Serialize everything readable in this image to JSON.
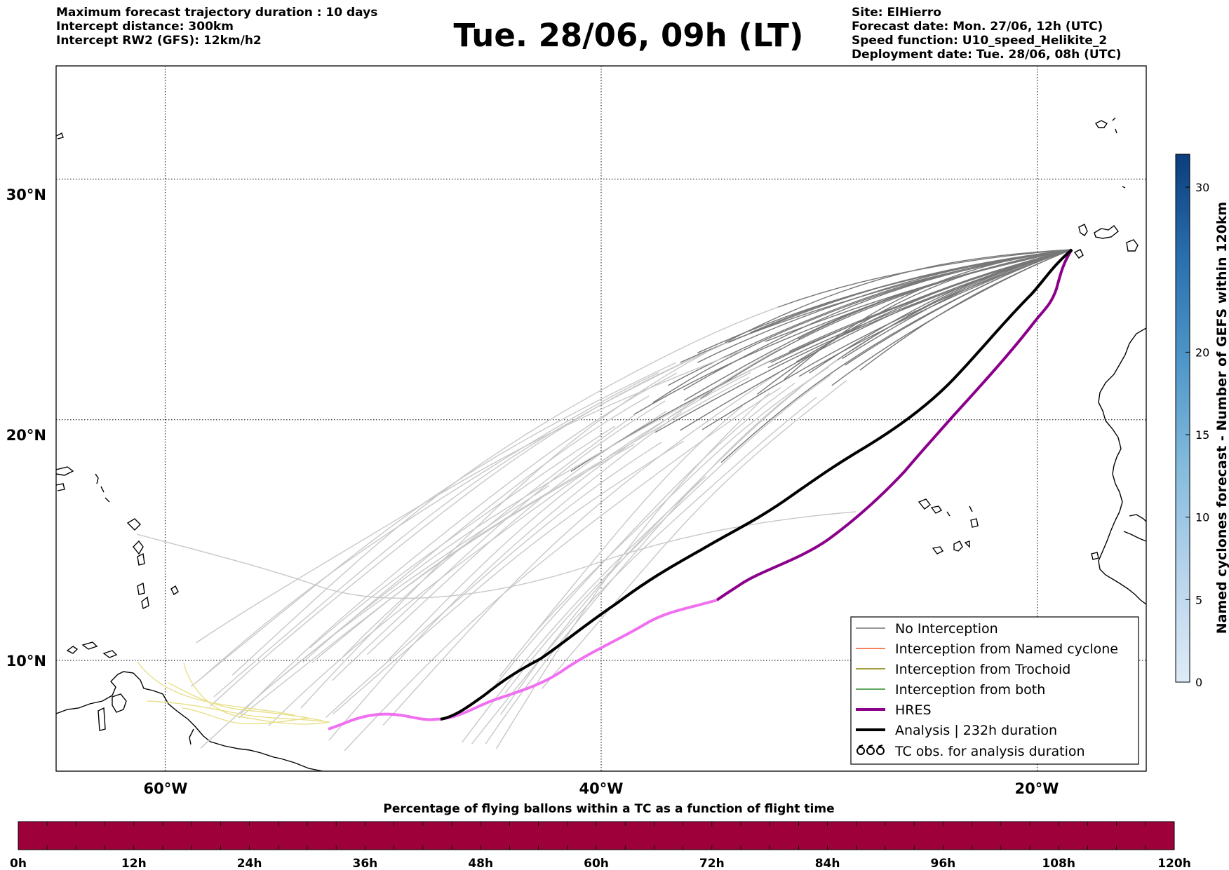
{
  "header": {
    "left_lines": [
      "Maximum forecast trajectory duration : 10 days",
      "Intercept distance: 300km",
      "Intercept RW2 (GFS):  12km/h2"
    ],
    "title": "Tue. 28/06, 09h (LT)",
    "right_lines": [
      "Site: ElHierro",
      "Forecast date: Mon. 27/06, 12h (UTC)",
      "Speed function: U10_speed_Helikite_2",
      "Deployment date: Tue. 28/06, 08h (UTC)"
    ]
  },
  "map": {
    "lon_range": [
      -65,
      -15
    ],
    "lat_range": [
      5.4,
      34.7
    ],
    "lon_ticks": [
      {
        "value": -60,
        "label": "60°W"
      },
      {
        "value": -40,
        "label": "40°W"
      },
      {
        "value": -20,
        "label": "20°W"
      }
    ],
    "lat_ticks": [
      {
        "value": 30,
        "label": "30°N"
      },
      {
        "value": 20,
        "label": "20°N"
      },
      {
        "value": 10,
        "label": "10°N"
      }
    ],
    "gridlines": "dotted",
    "colors": {
      "no_interception": "#777777",
      "faded_trajectory": "#c8c8c8",
      "trochoid_faded": "#e8e08a",
      "named_cyclone": "#f05a28",
      "trochoid": "#808000",
      "both": "#2e8b2e",
      "hres": "#8b008b",
      "hres_faded": "#f070f0",
      "analysis": "#000000"
    }
  },
  "legend": {
    "position": "lower-right",
    "items": [
      {
        "label": "No Interception",
        "style": "line",
        "color": "#777777"
      },
      {
        "label": "Interception from Named cyclone",
        "style": "line",
        "color": "#f05a28"
      },
      {
        "label": "Interception from Trochoid",
        "style": "line",
        "color": "#808000"
      },
      {
        "label": "Interception from both",
        "style": "line",
        "color": "#2e8b2e"
      },
      {
        "label": "HRES",
        "style": "thick-line",
        "color": "#8b008b"
      },
      {
        "label": "Analysis | 232h duration",
        "style": "thick-line",
        "color": "#000000"
      },
      {
        "label": "TC obs. for analysis duration",
        "style": "tc-symbols",
        "color": "#000000"
      }
    ]
  },
  "colorbar_right": {
    "label": "Named cyclones forecast - Number of GEFS within 120km",
    "range": [
      0,
      32
    ],
    "ticks": [
      "0",
      "5",
      "10",
      "15",
      "20",
      "30"
    ],
    "tick_values": [
      0,
      5,
      10,
      15,
      20,
      30
    ],
    "colormap": "Blues"
  },
  "colorbar_bottom": {
    "title": "Percentage of flying ballons within a TC as a function of flight time",
    "ticks": [
      "0h",
      "12h",
      "24h",
      "36h",
      "48h",
      "60h",
      "72h",
      "84h",
      "96h",
      "108h",
      "120h"
    ],
    "fill_color": "#9e003a"
  }
}
